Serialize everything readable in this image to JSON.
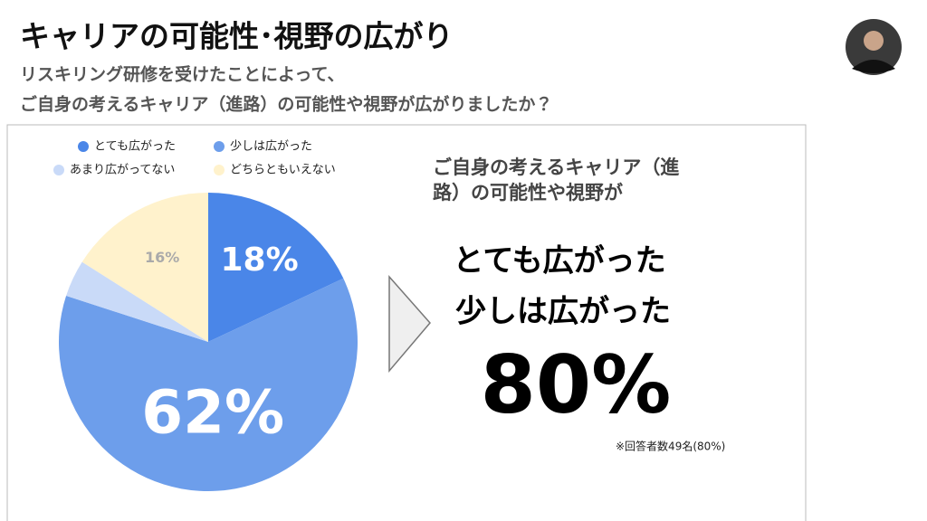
{
  "header": {
    "title": "キャリアの可能性･視野の広がり",
    "subtitle": [
      "リスキリング研修を受けたことによって、",
      "ご自身の考えるキャリア（進路）の可能性や視野が広がりましたか？"
    ]
  },
  "chart_data": {
    "type": "pie",
    "categories": [
      "とても広がった",
      "少しは広がった",
      "あまり広がってない",
      "どちらともいえない"
    ],
    "values": [
      18,
      62,
      4,
      16
    ],
    "value_labels": [
      "18%",
      "62%",
      null,
      "16%"
    ],
    "colors": [
      "#4a86e8",
      "#6d9eeb",
      "#c9daf8",
      "#fff2cc"
    ],
    "legend": "top"
  },
  "callout": {
    "heading": [
      "ご自身の考えるキャリア（進",
      "路）の可能性や視野が"
    ],
    "emphasis": [
      "とても広がった",
      "少しは広がった"
    ],
    "figure": "80%",
    "note": "※回答者数49名(80%)"
  }
}
